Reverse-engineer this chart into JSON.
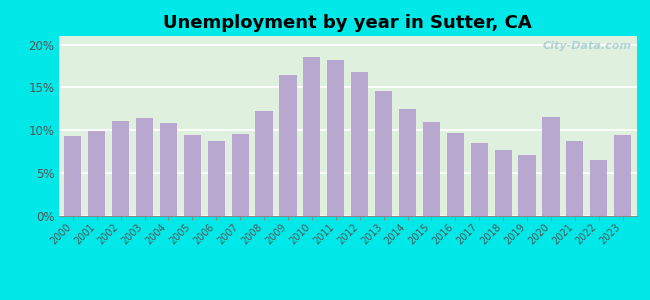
{
  "title": "Unemployment by year in Sutter, CA",
  "years": [
    2000,
    2001,
    2002,
    2003,
    2004,
    2005,
    2006,
    2007,
    2008,
    2009,
    2010,
    2011,
    2012,
    2013,
    2014,
    2015,
    2016,
    2017,
    2018,
    2019,
    2020,
    2021,
    2022,
    2023
  ],
  "values": [
    9.3,
    9.9,
    11.1,
    11.4,
    10.8,
    9.5,
    8.7,
    9.6,
    12.3,
    16.5,
    18.5,
    18.2,
    16.8,
    14.6,
    12.5,
    11.0,
    9.7,
    8.5,
    7.7,
    7.1,
    11.5,
    8.8,
    6.5,
    9.5
  ],
  "bar_color": "#b8a8d0",
  "background_color_fig": "#00e8e8",
  "plot_bg_top": "#e0f0e0",
  "plot_bg_bottom": "#f0fff0",
  "ylim": [
    0,
    21
  ],
  "yticks": [
    0,
    5,
    10,
    15,
    20
  ],
  "ytick_labels": [
    "0%",
    "5%",
    "10%",
    "15%",
    "20%"
  ],
  "title_fontsize": 13,
  "watermark_text": "City-Data.com"
}
